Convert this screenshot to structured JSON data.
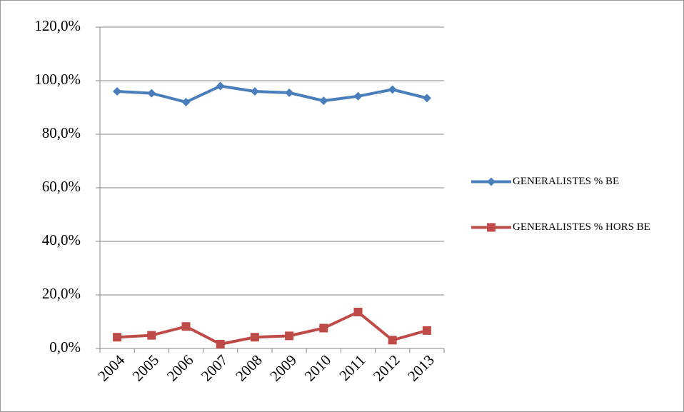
{
  "chart_data": {
    "type": "line",
    "categories": [
      "2004",
      "2005",
      "2006",
      "2007",
      "2008",
      "2009",
      "2010",
      "2011",
      "2012",
      "2013"
    ],
    "series": [
      {
        "name": "GENERALISTES % BE",
        "color": "#4a7ebb",
        "marker": "diamond",
        "values": [
          96.0,
          95.3,
          92.0,
          98.0,
          96.0,
          95.5,
          92.5,
          94.2,
          96.7,
          93.5
        ]
      },
      {
        "name": "GENERALISTES % HORS BE",
        "color": "#be4b48",
        "marker": "square",
        "values": [
          4.2,
          4.9,
          8.2,
          1.6,
          4.2,
          4.7,
          7.6,
          13.6,
          3.1,
          6.7
        ]
      }
    ],
    "ylim": [
      0,
      120
    ],
    "yticks": [
      {
        "value": 0,
        "label": "0,0%"
      },
      {
        "value": 20,
        "label": "20,0%"
      },
      {
        "value": 40,
        "label": "40,0%"
      },
      {
        "value": 60,
        "label": "60,0%"
      },
      {
        "value": 80,
        "label": "80,0%"
      },
      {
        "value": 100,
        "label": "100,0%"
      },
      {
        "value": 120,
        "label": "120,0%"
      }
    ],
    "grid": true,
    "legend": "right"
  }
}
